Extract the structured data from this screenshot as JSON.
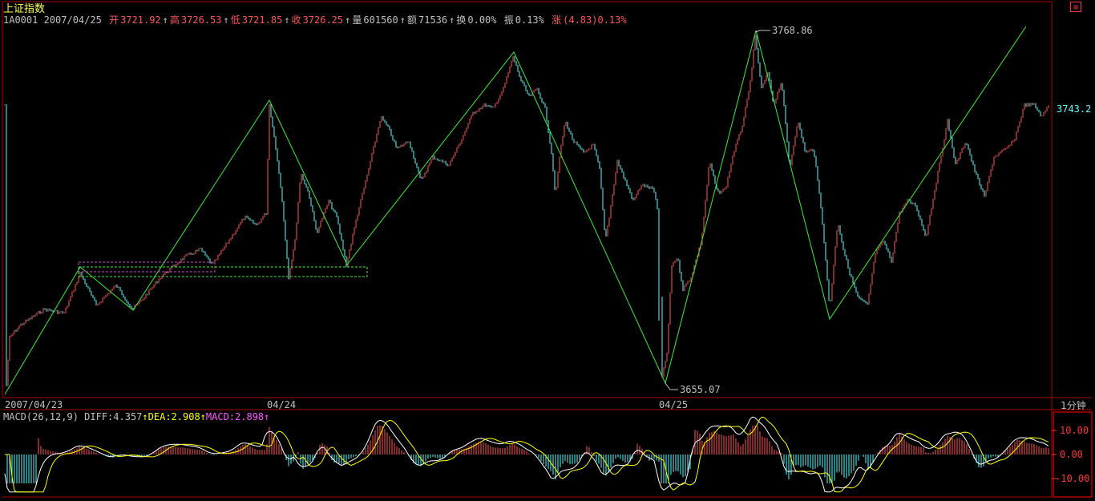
{
  "header": {
    "title": "上证指数",
    "code_date": "1A0001 2007/04/25",
    "open_label": "开",
    "open": "3721.92",
    "high_label": "高",
    "high": "3726.53",
    "low_label": "低",
    "low": "3721.85",
    "close_label": "收",
    "close": "3726.25",
    "volume_label": "量",
    "volume": "601560",
    "amount_label": "额",
    "amount": "71536",
    "turnover_label": "换",
    "turnover": "0.00%",
    "amplitude_label": "振",
    "amplitude": "0.13%",
    "change_label": "涨",
    "change": "(4.83)0.13%",
    "arrow": "↑"
  },
  "period_label": "1分钟",
  "menu_icon": "menu-icon",
  "colors": {
    "up": "#ff5555",
    "down": "#55ffff",
    "frame": "#b00000",
    "zigzag": "#33ee33",
    "diff": "#ffffff",
    "dea": "#ffff00",
    "macd": "#ff55ff"
  },
  "chart_data": [
    {
      "type": "line",
      "title": "上证指数",
      "x_labels": [
        "2007/04/23",
        "04/24",
        "04/25"
      ],
      "ylim": [
        3651,
        3774
      ],
      "current_value_label": "3743.2",
      "annotations": [
        {
          "text": "3768.86",
          "value": 3768.86
        },
        {
          "text": "3655.07",
          "value": 3655.07
        }
      ],
      "zigzag_points": [
        [
          0,
          3651
        ],
        [
          0.35,
          3699
        ],
        [
          0.61,
          3689
        ],
        [
          1.15,
          3740
        ],
        [
          1.4,
          3701
        ],
        [
          2.43,
          3761
        ],
        [
          3.1,
          3655
        ],
        [
          3.65,
          3768
        ],
        [
          4.3,
          3685
        ],
        [
          4.9,
          3766
        ]
      ],
      "grid": false
    },
    {
      "type": "bar",
      "title": "MACD(26,12,9)",
      "series": [
        {
          "name": "DIFF",
          "current": 4.357
        },
        {
          "name": "DEA",
          "current": 2.908
        },
        {
          "name": "MACD",
          "current": 2.898
        }
      ],
      "y_ticks": [
        "10.00",
        "0.00",
        "-10.00"
      ],
      "ylim": [
        -15,
        15
      ]
    }
  ],
  "macd_header": {
    "name": "MACD(26,12,9)",
    "diff": "DIFF:4.357",
    "dea": "DEA:2.908",
    "macd": "MACD:2.898",
    "arrow": "↑"
  }
}
